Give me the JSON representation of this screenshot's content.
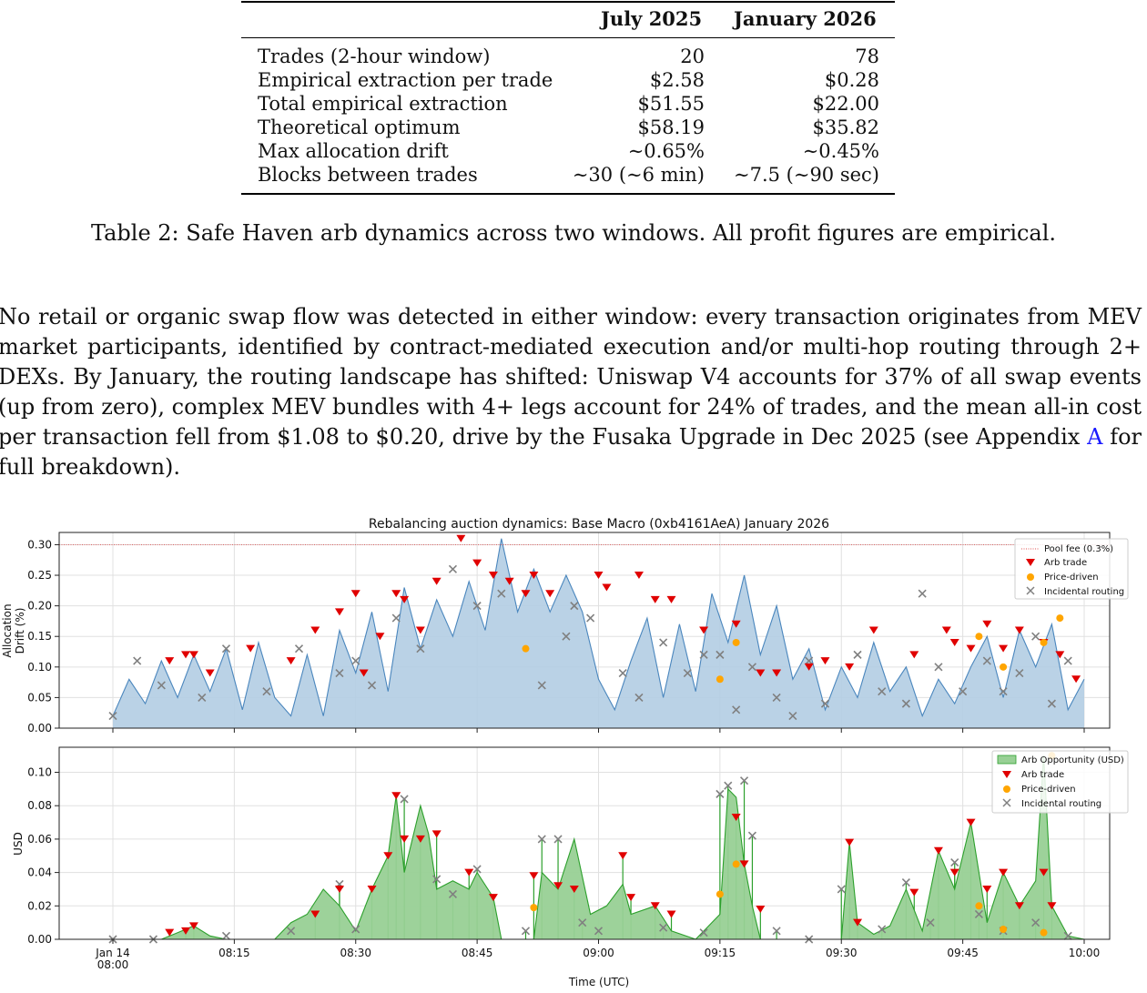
{
  "table": {
    "columns": [
      "",
      "July 2025",
      "January 2026"
    ],
    "rows": [
      [
        "Trades (2-hour window)",
        "20",
        "78"
      ],
      [
        "Empirical extraction per trade",
        "$2.58",
        "$0.28"
      ],
      [
        "Total empirical extraction",
        "$51.55",
        "$22.00"
      ],
      [
        "Theoretical optimum",
        "$58.19",
        "$35.82"
      ],
      [
        "Max allocation drift",
        "∼0.65%",
        "∼0.45%"
      ],
      [
        "Blocks between trades",
        "∼30 (∼6 min)",
        "∼7.5 (∼90 sec)"
      ]
    ],
    "caption": "Table 2: Safe Haven arb dynamics across two windows. All profit figures are empirical."
  },
  "paragraph": {
    "text_before_link": "No retail or organic swap flow was detected in either window: every transaction originates from MEV market participants, identified by contract-mediated execution and/or multi-hop routing through 2+ DEXs. By January, the routing landscape has shifted: Uniswap V4 accounts for 37% of all swap events (up from zero), complex MEV bundles with 4+ legs account for 24% of trades, and the mean all-in cost per transaction fell from $1.08 to $0.20, drive by the Fusaka Upgrade in Dec 2025 (see Appendix",
    "link_text": "A",
    "text_after_link": "for full breakdown)."
  },
  "chart_data": [
    {
      "type": "area",
      "title": "Rebalancing auction dynamics: Base Macro (0xb4161AeA) January 2026",
      "ylabel": "Allocation Drift (%)",
      "ylim": [
        0,
        0.32
      ],
      "yticks": [
        "0.00",
        "0.05",
        "0.10",
        "0.15",
        "0.20",
        "0.25",
        "0.30"
      ],
      "xrange_min": [
        0,
        120
      ],
      "threshold": 0.3,
      "legend": [
        "Pool fee (0.3%)",
        "Arb trade",
        "Price-driven",
        "Incidental routing"
      ],
      "legend_position": "top-right",
      "grid": true,
      "colors": {
        "area": "#b3cde3",
        "line": "#4a86bd",
        "arb": "#e00000",
        "price": "#ffa500",
        "incidental": "#808080",
        "fee": "#e05050"
      },
      "drift_series": [
        [
          0,
          0.02
        ],
        [
          2,
          0.08
        ],
        [
          4,
          0.04
        ],
        [
          6,
          0.11
        ],
        [
          8,
          0.05
        ],
        [
          10,
          0.12
        ],
        [
          12,
          0.06
        ],
        [
          14,
          0.13
        ],
        [
          16,
          0.03
        ],
        [
          18,
          0.14
        ],
        [
          20,
          0.05
        ],
        [
          22,
          0.02
        ],
        [
          24,
          0.12
        ],
        [
          26,
          0.02
        ],
        [
          28,
          0.16
        ],
        [
          30,
          0.09
        ],
        [
          32,
          0.19
        ],
        [
          34,
          0.06
        ],
        [
          36,
          0.23
        ],
        [
          38,
          0.13
        ],
        [
          40,
          0.21
        ],
        [
          42,
          0.15
        ],
        [
          44,
          0.24
        ],
        [
          46,
          0.16
        ],
        [
          48,
          0.31
        ],
        [
          50,
          0.19
        ],
        [
          52,
          0.26
        ],
        [
          54,
          0.19
        ],
        [
          56,
          0.25
        ],
        [
          58,
          0.19
        ],
        [
          60,
          0.08
        ],
        [
          62,
          0.03
        ],
        [
          64,
          0.11
        ],
        [
          66,
          0.18
        ],
        [
          68,
          0.05
        ],
        [
          70,
          0.17
        ],
        [
          72,
          0.06
        ],
        [
          74,
          0.22
        ],
        [
          76,
          0.14
        ],
        [
          78,
          0.25
        ],
        [
          80,
          0.12
        ],
        [
          82,
          0.2
        ],
        [
          84,
          0.08
        ],
        [
          86,
          0.13
        ],
        [
          88,
          0.03
        ],
        [
          90,
          0.1
        ],
        [
          92,
          0.05
        ],
        [
          94,
          0.14
        ],
        [
          96,
          0.06
        ],
        [
          98,
          0.1
        ],
        [
          100,
          0.02
        ],
        [
          102,
          0.08
        ],
        [
          104,
          0.04
        ],
        [
          106,
          0.1
        ],
        [
          108,
          0.15
        ],
        [
          110,
          0.05
        ],
        [
          112,
          0.16
        ],
        [
          114,
          0.1
        ],
        [
          116,
          0.17
        ],
        [
          118,
          0.03
        ],
        [
          120,
          0.08
        ]
      ],
      "arb_trades": [
        [
          7,
          0.11
        ],
        [
          9,
          0.12
        ],
        [
          10,
          0.12
        ],
        [
          12,
          0.09
        ],
        [
          17,
          0.13
        ],
        [
          22,
          0.11
        ],
        [
          25,
          0.16
        ],
        [
          28,
          0.19
        ],
        [
          30,
          0.22
        ],
        [
          31,
          0.09
        ],
        [
          33,
          0.15
        ],
        [
          35,
          0.22
        ],
        [
          36,
          0.21
        ],
        [
          38,
          0.16
        ],
        [
          40,
          0.24
        ],
        [
          43,
          0.31
        ],
        [
          45,
          0.27
        ],
        [
          47,
          0.25
        ],
        [
          49,
          0.24
        ],
        [
          51,
          0.22
        ],
        [
          52,
          0.25
        ],
        [
          54,
          0.22
        ],
        [
          60,
          0.25
        ],
        [
          61,
          0.23
        ],
        [
          65,
          0.25
        ],
        [
          67,
          0.21
        ],
        [
          69,
          0.21
        ],
        [
          73,
          0.16
        ],
        [
          77,
          0.17
        ],
        [
          80,
          0.09
        ],
        [
          82,
          0.09
        ],
        [
          86,
          0.1
        ],
        [
          88,
          0.11
        ],
        [
          91,
          0.1
        ],
        [
          94,
          0.16
        ],
        [
          99,
          0.12
        ],
        [
          103,
          0.16
        ],
        [
          104,
          0.14
        ],
        [
          106,
          0.13
        ],
        [
          108,
          0.17
        ],
        [
          110,
          0.13
        ],
        [
          112,
          0.16
        ],
        [
          115,
          0.14
        ],
        [
          117,
          0.12
        ],
        [
          119,
          0.08
        ]
      ],
      "price_driven": [
        [
          51,
          0.13
        ],
        [
          75,
          0.08
        ],
        [
          77,
          0.14
        ],
        [
          107,
          0.15
        ],
        [
          110,
          0.1
        ],
        [
          115,
          0.14
        ],
        [
          117,
          0.18
        ]
      ],
      "incidental": [
        [
          0,
          0.02
        ],
        [
          3,
          0.11
        ],
        [
          6,
          0.07
        ],
        [
          11,
          0.05
        ],
        [
          14,
          0.13
        ],
        [
          19,
          0.06
        ],
        [
          23,
          0.13
        ],
        [
          28,
          0.09
        ],
        [
          30,
          0.11
        ],
        [
          32,
          0.07
        ],
        [
          35,
          0.18
        ],
        [
          38,
          0.13
        ],
        [
          42,
          0.26
        ],
        [
          45,
          0.2
        ],
        [
          48,
          0.22
        ],
        [
          53,
          0.07
        ],
        [
          56,
          0.15
        ],
        [
          57,
          0.2
        ],
        [
          59,
          0.18
        ],
        [
          63,
          0.09
        ],
        [
          65,
          0.05
        ],
        [
          68,
          0.14
        ],
        [
          71,
          0.09
        ],
        [
          73,
          0.12
        ],
        [
          75,
          0.12
        ],
        [
          77,
          0.03
        ],
        [
          79,
          0.1
        ],
        [
          82,
          0.05
        ],
        [
          84,
          0.02
        ],
        [
          86,
          0.11
        ],
        [
          88,
          0.04
        ],
        [
          92,
          0.12
        ],
        [
          95,
          0.06
        ],
        [
          98,
          0.04
        ],
        [
          100,
          0.22
        ],
        [
          102,
          0.1
        ],
        [
          105,
          0.06
        ],
        [
          108,
          0.11
        ],
        [
          110,
          0.06
        ],
        [
          112,
          0.09
        ],
        [
          114,
          0.15
        ],
        [
          116,
          0.04
        ],
        [
          118,
          0.11
        ]
      ]
    },
    {
      "type": "area",
      "ylabel": "USD",
      "xlabel": "Time (UTC)",
      "ylim": [
        0,
        0.115
      ],
      "yticks": [
        "0.00",
        "0.02",
        "0.04",
        "0.06",
        "0.08",
        "0.10"
      ],
      "xticks": [
        "Jan 14\n08:00",
        "08:15",
        "08:30",
        "08:45",
        "09:00",
        "09:15",
        "09:30",
        "09:45",
        "10:00"
      ],
      "xtick_min": [
        0,
        15,
        30,
        45,
        60,
        75,
        90,
        105,
        120
      ],
      "legend": [
        "Arb Opportunity (USD)",
        "Arb trade",
        "Price-driven",
        "Incidental routing"
      ],
      "legend_position": "top-right",
      "grid": true,
      "colors": {
        "area": "#98d095",
        "line": "#2ca02c",
        "arb": "#e00000",
        "price": "#ffa500",
        "incidental": "#808080"
      },
      "opportunity_series": [
        [
          0,
          0
        ],
        [
          6,
          0
        ],
        [
          8,
          0.004
        ],
        [
          10,
          0.008
        ],
        [
          12,
          0.002
        ],
        [
          14,
          0
        ],
        [
          20,
          0
        ],
        [
          22,
          0.01
        ],
        [
          24,
          0.015
        ],
        [
          26,
          0.03
        ],
        [
          28,
          0.02
        ],
        [
          30,
          0.005
        ],
        [
          32,
          0.03
        ],
        [
          34,
          0.05
        ],
        [
          35,
          0.086
        ],
        [
          36,
          0.04
        ],
        [
          38,
          0.08
        ],
        [
          39,
          0.063
        ],
        [
          40,
          0.03
        ],
        [
          42,
          0.035
        ],
        [
          44,
          0.03
        ],
        [
          45,
          0.04
        ],
        [
          47,
          0.025
        ],
        [
          48,
          0.0
        ],
        [
          52,
          0.0
        ],
        [
          53,
          0.04
        ],
        [
          55,
          0.03
        ],
        [
          57,
          0.06
        ],
        [
          59,
          0.015
        ],
        [
          61,
          0.02
        ],
        [
          63,
          0.033
        ],
        [
          64,
          0.015
        ],
        [
          67,
          0.02
        ],
        [
          69,
          0.005
        ],
        [
          72,
          0.0
        ],
        [
          75,
          0.015
        ],
        [
          76,
          0.09
        ],
        [
          77,
          0.085
        ],
        [
          78,
          0.045
        ],
        [
          79,
          0.02
        ],
        [
          80,
          0.0
        ],
        [
          90,
          0.0
        ],
        [
          91,
          0.058
        ],
        [
          92,
          0.01
        ],
        [
          94,
          0.003
        ],
        [
          96,
          0.008
        ],
        [
          98,
          0.03
        ],
        [
          100,
          0.005
        ],
        [
          102,
          0.053
        ],
        [
          104,
          0.03
        ],
        [
          106,
          0.07
        ],
        [
          108,
          0.01
        ],
        [
          110,
          0.04
        ],
        [
          112,
          0.02
        ],
        [
          114,
          0.035
        ],
        [
          115,
          0.11
        ],
        [
          116,
          0.02
        ],
        [
          118,
          0.002
        ],
        [
          120,
          0.0
        ]
      ],
      "arb_trades": [
        [
          7,
          0.004
        ],
        [
          9,
          0.005
        ],
        [
          10,
          0.008
        ],
        [
          25,
          0.015
        ],
        [
          28,
          0.03
        ],
        [
          32,
          0.03
        ],
        [
          34,
          0.05
        ],
        [
          35,
          0.086
        ],
        [
          36,
          0.06
        ],
        [
          38,
          0.06
        ],
        [
          40,
          0.063
        ],
        [
          44,
          0.04
        ],
        [
          47,
          0.025
        ],
        [
          52,
          0.038
        ],
        [
          55,
          0.032
        ],
        [
          57,
          0.03
        ],
        [
          63,
          0.05
        ],
        [
          64,
          0.025
        ],
        [
          67,
          0.02
        ],
        [
          69,
          0.015
        ],
        [
          77,
          0.073
        ],
        [
          78,
          0.045
        ],
        [
          80,
          0.018
        ],
        [
          91,
          0.058
        ],
        [
          92,
          0.01
        ],
        [
          99,
          0.028
        ],
        [
          102,
          0.053
        ],
        [
          104,
          0.04
        ],
        [
          106,
          0.07
        ],
        [
          108,
          0.03
        ],
        [
          110,
          0.04
        ],
        [
          112,
          0.02
        ],
        [
          115,
          0.04
        ],
        [
          116,
          0.02
        ]
      ],
      "price_driven": [
        [
          52,
          0.019
        ],
        [
          75,
          0.027
        ],
        [
          77,
          0.045
        ],
        [
          107,
          0.02
        ],
        [
          110,
          0.006
        ],
        [
          115,
          0.004
        ],
        [
          116,
          0.11
        ]
      ],
      "incidental": [
        [
          0,
          0
        ],
        [
          5,
          0
        ],
        [
          14,
          0.002
        ],
        [
          22,
          0.005
        ],
        [
          28,
          0.033
        ],
        [
          30,
          0.006
        ],
        [
          36,
          0.084
        ],
        [
          40,
          0.036
        ],
        [
          42,
          0.027
        ],
        [
          45,
          0.042
        ],
        [
          51,
          0.005
        ],
        [
          53,
          0.06
        ],
        [
          55,
          0.06
        ],
        [
          58,
          0.01
        ],
        [
          60,
          0.005
        ],
        [
          68,
          0.007
        ],
        [
          73,
          0.004
        ],
        [
          75,
          0.087
        ],
        [
          76,
          0.092
        ],
        [
          78,
          0.095
        ],
        [
          79,
          0.062
        ],
        [
          82,
          0.005
        ],
        [
          86,
          0.0
        ],
        [
          90,
          0.03
        ],
        [
          95,
          0.006
        ],
        [
          98,
          0.034
        ],
        [
          101,
          0.01
        ],
        [
          104,
          0.046
        ],
        [
          107,
          0.015
        ],
        [
          110,
          0.005
        ],
        [
          114,
          0.01
        ],
        [
          118,
          0.002
        ]
      ]
    }
  ]
}
